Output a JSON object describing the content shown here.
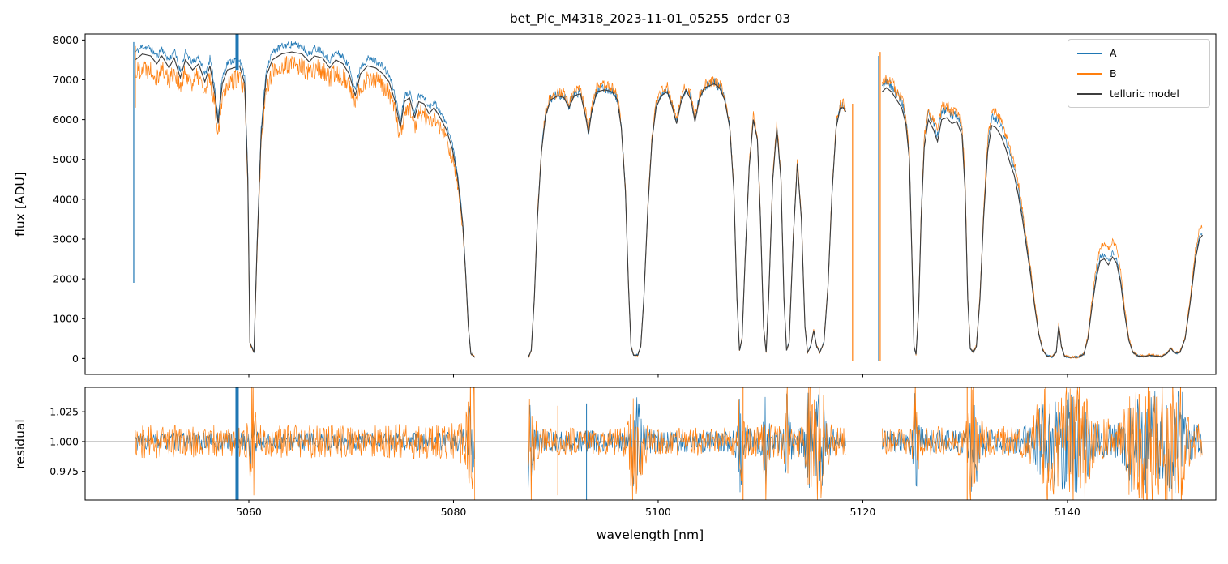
{
  "figure": {
    "title": "bet_Pic_M4318_2023-11-01_05255  order 03",
    "xlabel": "wavelength [nm]",
    "ylabel_top": "flux [ADU]",
    "ylabel_bottom": "residual",
    "legend": [
      {
        "label": "A",
        "color": "#1f77b4"
      },
      {
        "label": "B",
        "color": "#ff7f0e"
      },
      {
        "label": "telluric model",
        "color": "#3d3d3d"
      }
    ]
  },
  "chart_data": {
    "type": "line",
    "title": "bet_Pic_M4318_2023-11-01_05255  order 03",
    "xlabel": "wavelength [nm]",
    "xlim": [
      5044,
      5154.5
    ],
    "xticks": [
      5060,
      5080,
      5100,
      5120,
      5140
    ],
    "panels": [
      {
        "name": "flux",
        "ylabel": "flux [ADU]",
        "ylim": [
          -400,
          8150
        ],
        "yticks": [
          0,
          1000,
          2000,
          3000,
          4000,
          5000,
          6000,
          7000,
          8000
        ]
      },
      {
        "name": "residual",
        "ylabel": "residual",
        "ylim": [
          0.951,
          1.0455
        ],
        "yticks": [
          0.975,
          1.0,
          1.025
        ],
        "hline": 1.0
      }
    ],
    "legend_position": "upper right",
    "grid": false,
    "series": [
      {
        "name": "A",
        "color": "#1f77b4",
        "noise": {
          "base": 30,
          "left_frac": 0.008,
          "frac": 0.013
        }
      },
      {
        "name": "B",
        "color": "#ff7f0e",
        "noise": {
          "base": 30,
          "left_frac": 0.03,
          "frac": 0.018
        }
      },
      {
        "name": "telluric model",
        "color": "#3d3d3d",
        "segments": [
          [
            [
              5048.9,
              7500
            ],
            [
              5049.6,
              7650
            ],
            [
              5050.4,
              7600
            ],
            [
              5051.0,
              7400
            ],
            [
              5051.5,
              7600
            ],
            [
              5052.2,
              7300
            ],
            [
              5052.7,
              7550
            ],
            [
              5053.3,
              7050
            ],
            [
              5053.8,
              7500
            ],
            [
              5054.5,
              7250
            ],
            [
              5055.1,
              7400
            ],
            [
              5055.7,
              6950
            ],
            [
              5056.2,
              7350
            ],
            [
              5056.7,
              6600
            ],
            [
              5057.0,
              5900
            ],
            [
              5057.4,
              6900
            ],
            [
              5057.9,
              7250
            ],
            [
              5058.5,
              7300
            ],
            [
              5059.1,
              7350
            ],
            [
              5059.6,
              6900
            ],
            [
              5059.9,
              4500
            ],
            [
              5060.1,
              400
            ],
            [
              5060.5,
              150
            ],
            [
              5060.8,
              2800
            ],
            [
              5061.2,
              5600
            ],
            [
              5061.7,
              7100
            ],
            [
              5062.3,
              7500
            ],
            [
              5063.2,
              7650
            ],
            [
              5064.2,
              7700
            ],
            [
              5065.2,
              7650
            ],
            [
              5065.9,
              7450
            ],
            [
              5066.4,
              7600
            ],
            [
              5067.2,
              7550
            ],
            [
              5067.9,
              7300
            ],
            [
              5068.5,
              7500
            ],
            [
              5069.2,
              7400
            ],
            [
              5069.8,
              7150
            ],
            [
              5070.4,
              6600
            ],
            [
              5070.9,
              7150
            ],
            [
              5071.6,
              7350
            ],
            [
              5072.4,
              7300
            ],
            [
              5073.1,
              7150
            ],
            [
              5073.7,
              6950
            ],
            [
              5074.3,
              6450
            ],
            [
              5074.8,
              5800
            ],
            [
              5075.2,
              6450
            ],
            [
              5075.7,
              6550
            ],
            [
              5076.2,
              6050
            ],
            [
              5076.6,
              6450
            ],
            [
              5077.1,
              6400
            ],
            [
              5077.6,
              6150
            ],
            [
              5078.1,
              6300
            ],
            [
              5078.7,
              6050
            ],
            [
              5079.3,
              5750
            ],
            [
              5079.9,
              5250
            ],
            [
              5080.4,
              4550
            ],
            [
              5080.9,
              3400
            ],
            [
              5081.2,
              2100
            ],
            [
              5081.45,
              800
            ],
            [
              5081.7,
              120
            ],
            [
              5082.1,
              25
            ]
          ],
          [
            [
              5087.3,
              20
            ],
            [
              5087.6,
              200
            ],
            [
              5087.9,
              1500
            ],
            [
              5088.2,
              3500
            ],
            [
              5088.6,
              5200
            ],
            [
              5089.0,
              6100
            ],
            [
              5089.5,
              6500
            ],
            [
              5090.2,
              6600
            ],
            [
              5090.8,
              6550
            ],
            [
              5091.3,
              6300
            ],
            [
              5091.8,
              6600
            ],
            [
              5092.4,
              6650
            ],
            [
              5092.9,
              6100
            ],
            [
              5093.2,
              5650
            ],
            [
              5093.5,
              6200
            ],
            [
              5094.0,
              6700
            ],
            [
              5094.8,
              6750
            ],
            [
              5095.5,
              6700
            ],
            [
              5096.0,
              6500
            ],
            [
              5096.4,
              5800
            ],
            [
              5096.8,
              4200
            ],
            [
              5097.1,
              1800
            ],
            [
              5097.35,
              300
            ],
            [
              5097.6,
              80
            ],
            [
              5098.0,
              80
            ],
            [
              5098.3,
              300
            ],
            [
              5098.6,
              1500
            ],
            [
              5099.0,
              3800
            ],
            [
              5099.4,
              5500
            ],
            [
              5099.8,
              6300
            ],
            [
              5100.3,
              6600
            ],
            [
              5100.9,
              6700
            ],
            [
              5101.4,
              6300
            ],
            [
              5101.8,
              5900
            ],
            [
              5102.2,
              6400
            ],
            [
              5102.7,
              6750
            ],
            [
              5103.2,
              6500
            ],
            [
              5103.6,
              5950
            ],
            [
              5104.0,
              6500
            ],
            [
              5104.5,
              6800
            ],
            [
              5105.0,
              6850
            ],
            [
              5105.5,
              6900
            ],
            [
              5106.0,
              6800
            ],
            [
              5106.5,
              6500
            ],
            [
              5107.0,
              5800
            ],
            [
              5107.4,
              4200
            ],
            [
              5107.7,
              1500
            ],
            [
              5107.95,
              200
            ],
            [
              5108.2,
              500
            ],
            [
              5108.5,
              2500
            ],
            [
              5108.9,
              4800
            ],
            [
              5109.3,
              6000
            ],
            [
              5109.7,
              5500
            ],
            [
              5110.0,
              3500
            ],
            [
              5110.3,
              800
            ],
            [
              5110.55,
              150
            ],
            [
              5110.8,
              1500
            ],
            [
              5111.2,
              4500
            ],
            [
              5111.6,
              5800
            ],
            [
              5112.0,
              4500
            ],
            [
              5112.3,
              1500
            ],
            [
              5112.55,
              200
            ],
            [
              5112.8,
              400
            ],
            [
              5113.2,
              3000
            ],
            [
              5113.6,
              4900
            ],
            [
              5114.0,
              3500
            ],
            [
              5114.35,
              800
            ],
            [
              5114.6,
              150
            ],
            [
              5114.9,
              300
            ],
            [
              5115.2,
              700
            ],
            [
              5115.5,
              300
            ],
            [
              5115.8,
              150
            ],
            [
              5116.2,
              400
            ],
            [
              5116.6,
              1800
            ],
            [
              5117.0,
              4200
            ],
            [
              5117.4,
              5800
            ],
            [
              5117.8,
              6300
            ],
            [
              5118.1,
              6300
            ],
            [
              5118.35,
              6200
            ]
          ],
          [
            [
              5121.9,
              6700
            ],
            [
              5122.3,
              6800
            ],
            [
              5122.8,
              6700
            ],
            [
              5123.3,
              6500
            ],
            [
              5123.8,
              6300
            ],
            [
              5124.2,
              5900
            ],
            [
              5124.55,
              5000
            ],
            [
              5124.8,
              2500
            ],
            [
              5125.0,
              300
            ],
            [
              5125.2,
              100
            ],
            [
              5125.45,
              1200
            ],
            [
              5125.7,
              3500
            ],
            [
              5126.0,
              5300
            ],
            [
              5126.4,
              6000
            ],
            [
              5126.9,
              5750
            ],
            [
              5127.3,
              5450
            ],
            [
              5127.7,
              6000
            ],
            [
              5128.2,
              6050
            ],
            [
              5128.7,
              5900
            ],
            [
              5129.2,
              5950
            ],
            [
              5129.7,
              5600
            ],
            [
              5130.0,
              4200
            ],
            [
              5130.25,
              1500
            ],
            [
              5130.5,
              250
            ],
            [
              5130.8,
              150
            ],
            [
              5131.1,
              300
            ],
            [
              5131.45,
              1500
            ],
            [
              5131.8,
              3500
            ],
            [
              5132.2,
              5200
            ],
            [
              5132.6,
              5850
            ],
            [
              5133.0,
              5800
            ],
            [
              5133.5,
              5600
            ],
            [
              5134.0,
              5250
            ],
            [
              5134.4,
              4900
            ],
            [
              5134.8,
              4600
            ],
            [
              5135.2,
              4100
            ],
            [
              5135.6,
              3500
            ],
            [
              5136.0,
              2800
            ],
            [
              5136.4,
              2100
            ],
            [
              5136.8,
              1300
            ],
            [
              5137.2,
              600
            ],
            [
              5137.6,
              200
            ],
            [
              5138.0,
              60
            ],
            [
              5138.5,
              40
            ],
            [
              5138.9,
              150
            ],
            [
              5139.15,
              820
            ],
            [
              5139.4,
              300
            ],
            [
              5139.7,
              60
            ],
            [
              5140.2,
              30
            ],
            [
              5141.0,
              30
            ],
            [
              5141.6,
              100
            ],
            [
              5142.0,
              500
            ],
            [
              5142.4,
              1300
            ],
            [
              5142.8,
              2000
            ],
            [
              5143.2,
              2450
            ],
            [
              5143.6,
              2500
            ],
            [
              5144.0,
              2350
            ],
            [
              5144.4,
              2550
            ],
            [
              5144.8,
              2400
            ],
            [
              5145.2,
              1900
            ],
            [
              5145.6,
              1100
            ],
            [
              5146.0,
              450
            ],
            [
              5146.4,
              150
            ],
            [
              5146.9,
              60
            ],
            [
              5147.5,
              50
            ],
            [
              5148.1,
              80
            ],
            [
              5148.6,
              60
            ],
            [
              5149.2,
              50
            ],
            [
              5149.7,
              120
            ],
            [
              5150.1,
              250
            ],
            [
              5150.5,
              130
            ],
            [
              5151.0,
              150
            ],
            [
              5151.5,
              500
            ],
            [
              5152.0,
              1400
            ],
            [
              5152.5,
              2500
            ],
            [
              5152.9,
              3000
            ],
            [
              5153.2,
              3100
            ]
          ]
        ]
      }
    ],
    "factors": {
      "A": [
        [
          5044,
          1.025
        ],
        [
          5081.5,
          1.025
        ],
        [
          5085,
          1.005
        ],
        [
          5118.5,
          1.005
        ],
        [
          5121,
          1.02
        ],
        [
          5140,
          1.05
        ],
        [
          5154.5,
          1.02
        ]
      ],
      "B": [
        [
          5044,
          0.958
        ],
        [
          5081.5,
          0.958
        ],
        [
          5085,
          1.015
        ],
        [
          5118.5,
          1.015
        ],
        [
          5121,
          1.03
        ],
        [
          5139,
          1.08
        ],
        [
          5144,
          1.16
        ],
        [
          5150,
          1.1
        ],
        [
          5154.5,
          1.08
        ]
      ]
    },
    "noise": {
      "step": 0.05,
      "left_boundary": 5083
    },
    "residual_noise": {
      "step": 0.06,
      "ref_flux": 6800,
      "min_flux": 150,
      "max_gain": 4.8,
      "A": {
        "left_base": 0.0075,
        "base": 0.009
      },
      "B": {
        "left_base": 0.014,
        "base": 0.0115
      }
    },
    "spikes": {
      "top": [
        {
          "series": "A",
          "x": 5048.75,
          "y0": 1900,
          "y1": 7950,
          "width": 1.2
        },
        {
          "series": "B",
          "x": 5048.9,
          "y0": 6300,
          "y1": 7850,
          "width": 1.2
        },
        {
          "series": "A",
          "x": 5058.85,
          "y0": 7250,
          "y1": 8150,
          "width": 4
        },
        {
          "series": "B",
          "x": 5119.0,
          "y0": -60,
          "y1": 6400,
          "width": 1.2
        },
        {
          "series": "A",
          "x": 5121.55,
          "y0": -60,
          "y1": 7600,
          "width": 1.2
        },
        {
          "series": "B",
          "x": 5121.7,
          "y0": -60,
          "y1": 7700,
          "width": 1.2
        }
      ],
      "bottom": [
        {
          "series": "A",
          "x": 5058.85,
          "y0": 0.951,
          "y1": 1.0455,
          "width": 4
        },
        {
          "series": "B",
          "x": 5090.2,
          "y0": 0.955,
          "y1": 1.03,
          "width": 1
        },
        {
          "series": "A",
          "x": 5093.0,
          "y0": 0.951,
          "y1": 1.032,
          "width": 1
        },
        {
          "series": "B",
          "x": 5108.3,
          "y0": 0.951,
          "y1": 1.0455,
          "width": 1
        },
        {
          "series": "B",
          "x": 5130.2,
          "y0": 0.951,
          "y1": 1.0455,
          "width": 1
        },
        {
          "series": "B",
          "x": 5147.0,
          "y0": 0.953,
          "y1": 1.04,
          "width": 1
        }
      ]
    }
  }
}
